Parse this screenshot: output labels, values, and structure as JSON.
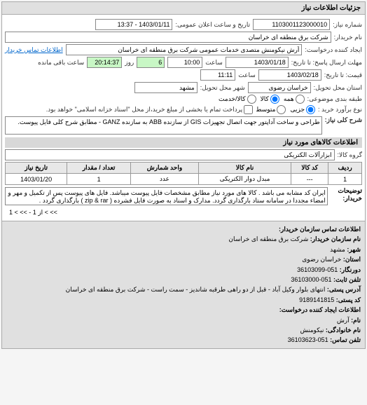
{
  "panel_title": "جزئیات اطلاعات نیاز",
  "form": {
    "req_no_lbl": "شماره نیاز:",
    "req_no": "1103001123000010",
    "datetime_lbl": "تاریخ و ساعت اعلان عمومی:",
    "datetime": "1403/01/11 - 13:37",
    "buyer_lbl": "نام خریدار:",
    "buyer": "شرکت برق منطقه ای خراسان",
    "creator_lbl": "ایجاد کننده درخواست:",
    "creator": "آرش نیکومنش متصدی خدمات عمومی شرکت برق منطقه ای خراسان",
    "contact_link": "اطلاعات تماس خریدار",
    "resp_deadline_lbl": "مهلت ارسال پاسخ: تا تاریخ:",
    "resp_date": "1403/01/18",
    "time_lbl": "ساعت",
    "resp_time": "10:00",
    "days_remain": "6",
    "days_lbl": "روز",
    "time_remain": "20:14:37",
    "time_remain_lbl": "ساعت باقی مانده",
    "quote_lbl": "قیمت: تا تاریخ:",
    "quote_date": "1403/02/18",
    "quote_time": "11:11",
    "delivery_loc_lbl": "استان محل تحویل:",
    "delivery_prov": "خراسان رضوی",
    "delivery_city_lbl": "شهر محل تحویل:",
    "delivery_city": "مشهد",
    "cat_lbl": "طبقه بندی موضوعی:",
    "cat_all": "همه",
    "cat_goods": "کالا",
    "cat_service": "کالا/خدمت",
    "size_lbl": "نوع برآورد خرید :",
    "size_s": "جزیی",
    "size_m": "متوسط",
    "size_note": "پرداخت تمام یا بخشی از مبلغ خرید،از محل \"اسناد خزانه اسلامی\" خواهد بود.",
    "desc_lbl": "شرح کلی نیاز:",
    "desc": "طراحی و ساخت آداپتور جهت اتصال تجهیزات GIS از سازنده ABB به سازنده GANZ - مطابق شرح کلی فایل پیوست."
  },
  "goods_title": "اطلاعات کالاهای مورد نیاز",
  "group_lbl": "گروه کالا:",
  "group_val": "ابزارآلات الکتریکی",
  "table": {
    "h_row": "ردیف",
    "h_code": "کد کالا",
    "h_name": "نام کالا",
    "h_unit": "واحد شمارش",
    "h_qty": "تعداد / مقدار",
    "h_date": "تاریخ نیاز",
    "r1_row": "1",
    "r1_code": "---",
    "r1_name": "مبدل دوار الکتریکی",
    "r1_unit": "عدد",
    "r1_qty": "1",
    "r1_date": "1403/01/20"
  },
  "note_lbl": "توضیحات خریدار:",
  "note": "ایران کد مشابه می باشد . کالا های مورد نیاز مطابق مشخصات فایل پیوست میباشد. فایل های پیوست پس از تکمیل و مهر و امضاء مجددا در سامانه ستاد بارگذاری گردد. مدارک و اسناد به صورت فایل فشرده ( zip & rar ) بارگذاری گردد .",
  "pager": "از 1 - >> > 1 < <<",
  "footer": {
    "t1": "اطلاعات تماس سازمان خریدار:",
    "l1": "نام سازمان خریدار:",
    "v1": "شرکت برق منطقه ای خراسان",
    "l2": "شهر:",
    "v2": "مشهد",
    "l3": "استان:",
    "v3": "خراسان رضوی",
    "l4": "دورنگار:",
    "v4": "051-36103099",
    "l5": "تلفن ثابت:",
    "v5": "051-36103000",
    "l6": "آدرس پستی:",
    "v6": "انتهای بلوار وکیل آباد - قبل از دو راهی طرقبه شاندیز - سمت راست - شرکت برق منطقه ای خراسان",
    "l7": "کد پستی:",
    "v7": "9189141815",
    "t2": "اطلاعات ایجاد کننده درخواست:",
    "l8": "نام:",
    "v8": "آرش",
    "l9": "نام خانوادگی:",
    "v9": "نیکومنش",
    "l10": "تلفن تماس:",
    "v10": "051-36103623"
  },
  "colors": {
    "panel_bg": "#e0e0e0",
    "green": "#c8f7c5"
  }
}
